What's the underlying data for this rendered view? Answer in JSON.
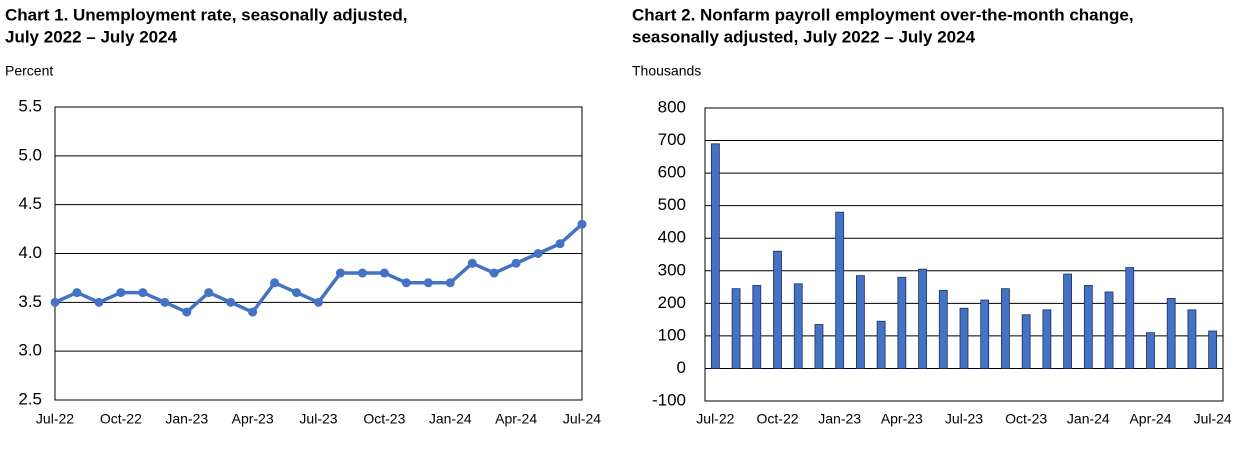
{
  "chart_data": [
    {
      "type": "line",
      "title": [
        "Chart 1. Unemployment rate, seasonally adjusted,",
        "July 2022 – July 2024"
      ],
      "ylabel": "Percent",
      "categories": [
        "Jul-22",
        null,
        null,
        "Oct-22",
        null,
        null,
        "Jan-23",
        null,
        null,
        "Apr-23",
        null,
        null,
        "Jul-23",
        null,
        null,
        "Oct-23",
        null,
        null,
        "Jan-24",
        null,
        null,
        "Apr-24",
        null,
        null,
        "Jul-24"
      ],
      "values": [
        3.5,
        3.6,
        3.5,
        3.6,
        3.6,
        3.5,
        3.4,
        3.6,
        3.5,
        3.4,
        3.7,
        3.6,
        3.5,
        3.8,
        3.8,
        3.8,
        3.7,
        3.7,
        3.7,
        3.9,
        3.8,
        3.9,
        4.0,
        4.1,
        4.3
      ],
      "color": "#4472c4",
      "ylim": [
        2.5,
        5.5
      ],
      "yticks": [
        2.5,
        {
          "value": 3,
          "label": "3.0"
        },
        3.5,
        {
          "value": 4,
          "label": "4.0"
        },
        4.5,
        {
          "value": 5,
          "label": "5.0"
        },
        5.5
      ],
      "grid": true
    },
    {
      "type": "bar",
      "title": [
        "Chart 2. Nonfarm payroll employment over-the-month change,",
        "seasonally adjusted, July 2022 – July 2024"
      ],
      "ylabel": "Thousands",
      "categories": [
        "Jul-22",
        null,
        null,
        "Oct-22",
        null,
        null,
        "Jan-23",
        null,
        null,
        "Apr-23",
        null,
        null,
        "Jul-23",
        null,
        null,
        "Oct-23",
        null,
        null,
        "Jan-24",
        null,
        null,
        "Apr-24",
        null,
        null,
        "Jul-24"
      ],
      "values": [
        690,
        245,
        255,
        360,
        260,
        135,
        480,
        285,
        145,
        280,
        305,
        240,
        185,
        210,
        245,
        165,
        180,
        290,
        255,
        235,
        310,
        110,
        215,
        180,
        115
      ],
      "color": "#4472c4",
      "ylim": [
        -100,
        800
      ],
      "yticks": [
        -100,
        0,
        100,
        200,
        300,
        400,
        500,
        600,
        700,
        800
      ],
      "grid": true
    }
  ]
}
